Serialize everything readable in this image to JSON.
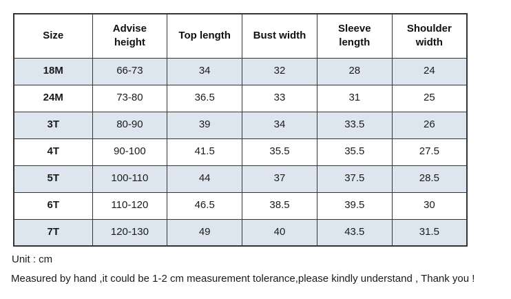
{
  "size_chart": {
    "headers": [
      {
        "label": "Size"
      },
      {
        "label": "Advise height"
      },
      {
        "label": "Top length"
      },
      {
        "label": "Bust width"
      },
      {
        "label": "Sleeve length"
      },
      {
        "label": "Shoulder width"
      }
    ],
    "rows": [
      {
        "size": "18M",
        "advise_height": "66-73",
        "top_length": "34",
        "bust_width": "32",
        "sleeve_length": "28",
        "shoulder_width": "24"
      },
      {
        "size": "24M",
        "advise_height": "73-80",
        "top_length": "36.5",
        "bust_width": "33",
        "sleeve_length": "31",
        "shoulder_width": "25"
      },
      {
        "size": "3T",
        "advise_height": "80-90",
        "top_length": "39",
        "bust_width": "34",
        "sleeve_length": "33.5",
        "shoulder_width": "26"
      },
      {
        "size": "4T",
        "advise_height": "90-100",
        "top_length": "41.5",
        "bust_width": "35.5",
        "sleeve_length": "35.5",
        "shoulder_width": "27.5"
      },
      {
        "size": "5T",
        "advise_height": "100-110",
        "top_length": "44",
        "bust_width": "37",
        "sleeve_length": "37.5",
        "shoulder_width": "28.5"
      },
      {
        "size": "6T",
        "advise_height": "110-120",
        "top_length": "46.5",
        "bust_width": "38.5",
        "sleeve_length": "39.5",
        "shoulder_width": "30"
      },
      {
        "size": "7T",
        "advise_height": "120-130",
        "top_length": "49",
        "bust_width": "40",
        "sleeve_length": "43.5",
        "shoulder_width": "31.5"
      }
    ]
  },
  "notes": {
    "unit": "Unit : cm",
    "tolerance": "Measured by hand ,it could be 1-2 cm measurement tolerance,please kindly understand , Thank you !"
  },
  "colors": {
    "row_shade": "#dde6ef",
    "border": "#333333",
    "text": "#1a1a1a"
  }
}
